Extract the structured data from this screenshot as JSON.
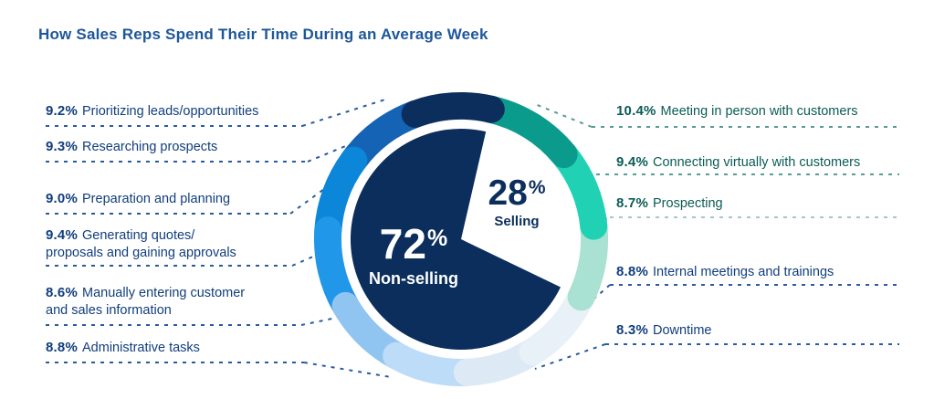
{
  "title": "How Sales Reps Spend Their Time During an Average Week",
  "palette": {
    "title_blue": "#1E5799",
    "navy_text": "#113E7D",
    "teal_text": "#0A5C55",
    "dash_navy": "#2A5AA0",
    "dash_teal": "#579C95",
    "dash_mint": "#A6C6CB",
    "pie_navy": "#0B2E5C",
    "background": "#FFFFFF"
  },
  "chart_data": {
    "type": "pie",
    "title": "How Sales Reps Spend Their Time During an Average Week",
    "units": "percent of average week",
    "center": {
      "non_selling_number": "72",
      "non_selling_pct_sign": "%",
      "non_selling_label": "Non-selling",
      "selling_number": "28",
      "selling_pct_sign": "%",
      "selling_label": "Selling"
    },
    "groups": [
      {
        "name": "Selling",
        "total": 28
      },
      {
        "name": "Non-selling",
        "total": 72
      }
    ],
    "segments": [
      {
        "id": "meeting",
        "pct": "10.4%",
        "value": 10.4,
        "label": "Meeting in person with customers",
        "group": "selling",
        "color": "#0B9B8D"
      },
      {
        "id": "connecting",
        "pct": "9.4%",
        "value": 9.4,
        "label": "Connecting virtually with customers",
        "group": "selling",
        "color": "#20D2B3"
      },
      {
        "id": "prospecting",
        "pct": "8.7%",
        "value": 8.7,
        "label": "Prospecting",
        "group": "selling",
        "color": "#A9E2D2"
      },
      {
        "id": "internal",
        "pct": "8.8%",
        "value": 8.8,
        "label": "Internal meetings and trainings",
        "group": "non-selling",
        "color": "#E9F1F8"
      },
      {
        "id": "downtime",
        "pct": "8.3%",
        "value": 8.3,
        "label": "Downtime",
        "group": "non-selling",
        "color": "#DDEAF6"
      },
      {
        "id": "admin",
        "pct": "8.8%",
        "value": 8.8,
        "label": "Administrative tasks",
        "group": "non-selling",
        "color": "#BCDCF8"
      },
      {
        "id": "manually",
        "pct": "8.6%",
        "value": 8.6,
        "label": "Manually entering customer\nand sales information",
        "group": "non-selling",
        "color": "#90C4F1"
      },
      {
        "id": "quotes",
        "pct": "9.4%",
        "value": 9.4,
        "label": "Generating quotes/\nproposals and gaining approvals",
        "group": "non-selling",
        "color": "#2097E8"
      },
      {
        "id": "prep",
        "pct": "9.0%",
        "value": 9.0,
        "label": "Preparation and planning",
        "group": "non-selling",
        "color": "#0C86D8"
      },
      {
        "id": "research",
        "pct": "9.3%",
        "value": 9.3,
        "label": "Researching prospects",
        "group": "non-selling",
        "color": "#1463B5"
      },
      {
        "id": "prioritizing",
        "pct": "9.2%",
        "value": 9.2,
        "label": "Prioritizing leads/opportunities",
        "group": "non-selling",
        "color": "#0B2E5C"
      }
    ]
  }
}
